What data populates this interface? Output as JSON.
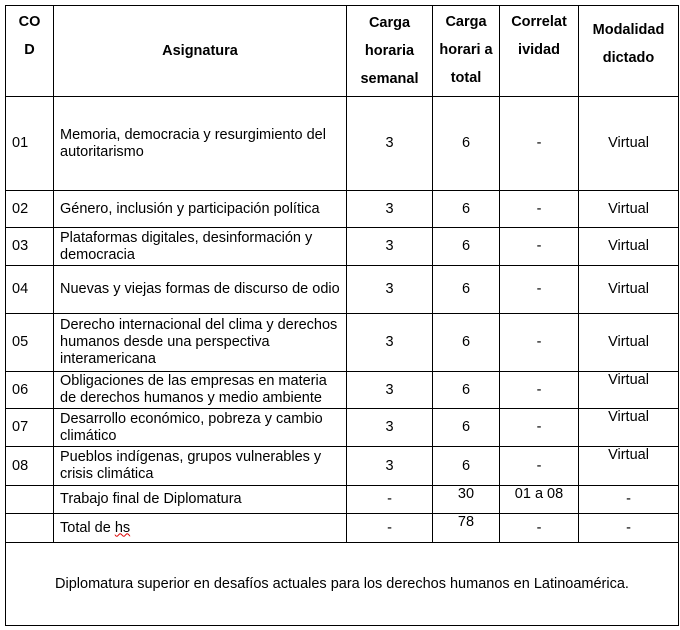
{
  "headers": {
    "cod": "CO D",
    "asignatura": "Asignatura",
    "semanal": "Carga horaria semanal",
    "total": "Carga horari a total",
    "correlatividad": "Correlat ividad",
    "modalidad": "Modalidad dictado"
  },
  "rows": [
    {
      "cod": "01",
      "asignatura": "Memoria, democracia y resurgimiento del autoritarismo",
      "semanal": "3",
      "total": "6",
      "correlatividad": "-",
      "modalidad": "Virtual"
    },
    {
      "cod": "02",
      "asignatura": "Género, inclusión y participación política",
      "semanal": "3",
      "total": "6",
      "correlatividad": "-",
      "modalidad": "Virtual"
    },
    {
      "cod": "03",
      "asignatura": "Plataformas digitales, desinformación y democracia",
      "semanal": "3",
      "total": "6",
      "correlatividad": "-",
      "modalidad": "Virtual"
    },
    {
      "cod": "04",
      "asignatura": "Nuevas y viejas formas de discurso de odio",
      "semanal": "3",
      "total": "6",
      "correlatividad": "-",
      "modalidad": "Virtual"
    },
    {
      "cod": "05",
      "asignatura": "Derecho internacional del clima y derechos humanos desde una perspectiva interamericana",
      "semanal": "3",
      "total": "6",
      "correlatividad": "-",
      "modalidad": "Virtual"
    },
    {
      "cod": "06",
      "asignatura": "Obligaciones de las empresas en materia de derechos humanos y medio ambiente",
      "semanal": "3",
      "total": "6",
      "correlatividad": "-",
      "modalidad": "Virtual"
    },
    {
      "cod": "07",
      "asignatura": "Desarrollo económico, pobreza y cambio climático",
      "semanal": "3",
      "total": "6",
      "correlatividad": "-",
      "modalidad": "Virtual"
    },
    {
      "cod": "08",
      "asignatura": "Pueblos indígenas, grupos vulnerables y crisis climática",
      "semanal": "3",
      "total": "6",
      "correlatividad": "-",
      "modalidad": "Virtual"
    }
  ],
  "trabajo_final": {
    "asignatura": "Trabajo final de Diplomatura",
    "semanal": "-",
    "total": "30",
    "correlatividad": "01 a 08",
    "modalidad": "-"
  },
  "total_hs": {
    "asignatura_prefix": "Total de ",
    "asignatura_underlined": "hs",
    "semanal": "-",
    "total": "78",
    "correlatividad": "-",
    "modalidad": "-"
  },
  "footer": "Diplomatura superior en desafíos actuales para los derechos humanos en Latinoamérica."
}
